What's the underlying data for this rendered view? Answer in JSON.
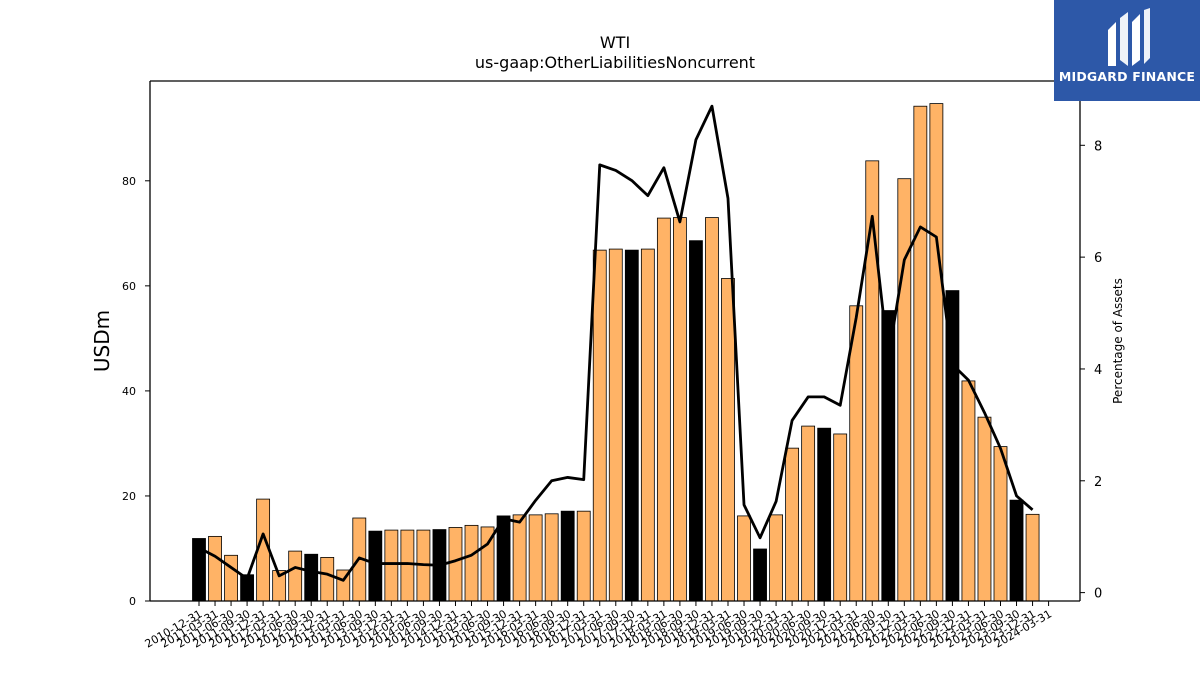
{
  "chart_data": {
    "type": "bar",
    "title": "WTI",
    "subtitle": "us-gaap:OtherLiabilitiesNoncurrent",
    "ylabel": "USDm",
    "y2label": "Percentage of Assets",
    "ylim": [
      0,
      99
    ],
    "y2lim": [
      -0.15,
      9.15
    ],
    "yticks": [
      0,
      20,
      40,
      60,
      80
    ],
    "y2ticks": [
      0,
      2,
      4,
      6,
      8
    ],
    "categories": [
      "2010-12-31",
      "2011-03-31",
      "2011-06-30",
      "2011-09-30",
      "2011-12-31",
      "2012-03-31",
      "2012-06-30",
      "2012-09-30",
      "2012-12-31",
      "2013-03-31",
      "2013-06-30",
      "2013-09-30",
      "2013-12-31",
      "2014-03-31",
      "2014-06-30",
      "2014-09-30",
      "2014-12-31",
      "2015-03-31",
      "2015-06-30",
      "2015-09-30",
      "2015-12-31",
      "2016-03-31",
      "2016-06-30",
      "2016-09-30",
      "2016-12-31",
      "2017-03-31",
      "2017-06-30",
      "2017-09-30",
      "2017-12-31",
      "2018-03-31",
      "2018-06-30",
      "2018-09-30",
      "2018-12-31",
      "2019-03-31",
      "2019-06-30",
      "2019-09-30",
      "2019-12-31",
      "2020-03-31",
      "2020-06-30",
      "2020-09-30",
      "2020-12-31",
      "2021-03-31",
      "2021-06-30",
      "2021-09-30",
      "2021-12-31",
      "2022-03-31",
      "2022-06-30",
      "2022-09-30",
      "2022-12-31",
      "2023-03-31",
      "2023-06-30",
      "2023-09-30",
      "2023-12-31",
      "2024-03-31"
    ],
    "xtick_labels": [
      "2010-12-31",
      "2011-03-31",
      "2011-06-30",
      "2011-09-30",
      "2011-12-31",
      "2012-03-31",
      "2012-06-30",
      "2012-09-30",
      "2012-12-31",
      "2013-03-31",
      "2013-06-30",
      "2013-09-30",
      "2013-12-31",
      "2014-03-31",
      "2014-06-30",
      "2014-09-30",
      "2014-12-31",
      "2015-03-31",
      "2015-06-30",
      "2015-09-30",
      "2015-12-31",
      "2016-03-31",
      "2016-06-30",
      "2016-09-30",
      "2016-12-31",
      "2017-03-31",
      "2017-06-30",
      "2017-09-30",
      "2017-12-31",
      "2018-03-31",
      "2018-06-30",
      "2018-09-30",
      "2018-12-31",
      "2019-03-31",
      "2019-06-30",
      "2019-09-30",
      "2019-12-31",
      "2020-03-31",
      "2020-06-30",
      "2020-09-30",
      "2020-12-31",
      "2021-03-31",
      "2021-06-30",
      "2021-09-30",
      "2021-12-31",
      "2022-03-31",
      "2022-06-30",
      "2022-09-30",
      "2022-12-31",
      "2023-03-31",
      "2023-06-30",
      "2023-09-30",
      "2023-12-31",
      "2024-03-31"
    ],
    "values": [
      11.9,
      12.3,
      8.7,
      5.0,
      19.4,
      5.8,
      9.5,
      8.9,
      8.3,
      5.9,
      15.8,
      13.3,
      13.5,
      13.5,
      13.5,
      13.6,
      14.0,
      14.4,
      14.1,
      16.2,
      16.4,
      16.4,
      16.6,
      17.1,
      17.1,
      66.8,
      67.0,
      66.8,
      67.0,
      72.9,
      73.0,
      68.6,
      73.0,
      61.4,
      16.2,
      9.9,
      16.4,
      29.1,
      33.3,
      32.9,
      31.8,
      56.2,
      83.8,
      55.3,
      80.4,
      94.2,
      94.7,
      59.1,
      41.9,
      35.0,
      29.4,
      19.2,
      16.5,
      null
    ],
    "dark_bars": [
      true,
      false,
      false,
      true,
      false,
      false,
      false,
      true,
      false,
      false,
      false,
      true,
      false,
      false,
      false,
      true,
      false,
      false,
      false,
      true,
      false,
      false,
      false,
      true,
      false,
      false,
      false,
      true,
      false,
      false,
      false,
      true,
      false,
      false,
      false,
      true,
      false,
      false,
      false,
      true,
      false,
      false,
      false,
      true,
      false,
      false,
      false,
      true,
      false,
      false,
      false,
      true,
      false,
      false
    ],
    "line_values": [
      0.8,
      0.65,
      0.45,
      0.25,
      1.05,
      0.3,
      0.45,
      0.38,
      0.33,
      0.22,
      0.62,
      0.52,
      0.52,
      0.52,
      0.5,
      0.49,
      0.57,
      0.67,
      0.87,
      1.32,
      1.26,
      1.65,
      2.0,
      2.06,
      2.02,
      7.65,
      7.55,
      7.37,
      7.1,
      7.6,
      6.63,
      8.1,
      8.7,
      7.05,
      1.57,
      0.98,
      1.63,
      3.08,
      3.5,
      3.5,
      3.35,
      4.92,
      6.73,
      4.2,
      5.95,
      6.54,
      6.36,
      4.08,
      3.8,
      3.22,
      2.58,
      1.73,
      1.48,
      null
    ],
    "colors": {
      "bar": "#ffb366",
      "bar_dark": "#000000",
      "bar_edge": "#000000",
      "line": "#000000"
    }
  },
  "logo": {
    "text": "MIDGARD FINANCE",
    "background": "#2d58a8"
  }
}
